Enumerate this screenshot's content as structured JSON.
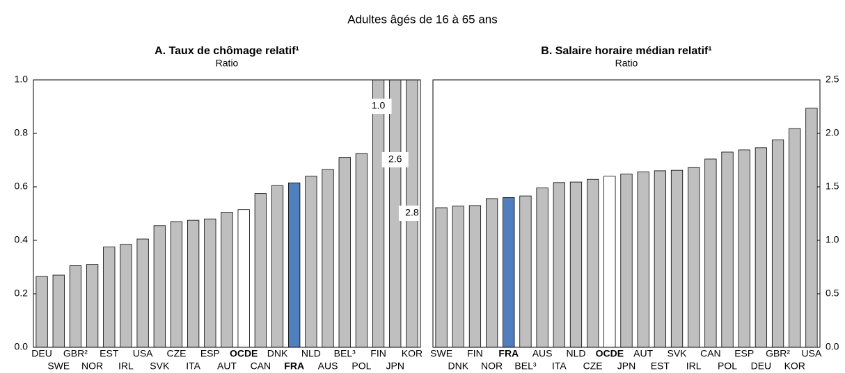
{
  "title": "Adultes âgés de 16 à 65 ans",
  "chart_data": [
    {
      "type": "bar",
      "title": "A. Taux de chômage relatif¹",
      "subtitle": "Ratio",
      "categories": [
        "DEU",
        "SWE",
        "GBR²",
        "NOR",
        "EST",
        "IRL",
        "USA",
        "SVK",
        "CZE",
        "ITA",
        "ESP",
        "AUT",
        "OCDE",
        "CAN",
        "DNK",
        "FRA",
        "NLD",
        "AUS",
        "BEL³",
        "POL",
        "FIN",
        "JPN",
        "KOR"
      ],
      "values": [
        0.265,
        0.27,
        0.305,
        0.31,
        0.375,
        0.385,
        0.405,
        0.455,
        0.47,
        0.475,
        0.48,
        0.505,
        0.515,
        0.575,
        0.605,
        0.615,
        0.64,
        0.665,
        0.71,
        0.725,
        1.0,
        2.6,
        2.8
      ],
      "value_labels": [
        null,
        null,
        null,
        null,
        null,
        null,
        null,
        null,
        null,
        null,
        null,
        null,
        null,
        null,
        null,
        null,
        null,
        null,
        null,
        null,
        "1.0",
        "2.6",
        "2.8"
      ],
      "color": "#bfbfbf",
      "colors": [
        "#bfbfbf",
        "#bfbfbf",
        "#bfbfbf",
        "#bfbfbf",
        "#bfbfbf",
        "#bfbfbf",
        "#bfbfbf",
        "#bfbfbf",
        "#bfbfbf",
        "#bfbfbf",
        "#bfbfbf",
        "#bfbfbf",
        "#ffffff",
        "#bfbfbf",
        "#bfbfbf",
        "#4f7fbf",
        "#bfbfbf",
        "#bfbfbf",
        "#bfbfbf",
        "#bfbfbf",
        "#bfbfbf",
        "#bfbfbf",
        "#bfbfbf"
      ],
      "ylim": [
        0,
        1.0
      ],
      "yticks": [
        {
          "value": 0,
          "label": "0.0"
        },
        0.2,
        0.4,
        0.6,
        0.8,
        {
          "value": 1.0,
          "label": "1.0"
        }
      ],
      "axis_side": "left"
    },
    {
      "type": "bar",
      "title": "B. Salaire horaire médian relatif¹",
      "subtitle": "Ratio",
      "categories": [
        "SWE",
        "DNK",
        "FIN",
        "NOR",
        "FRA",
        "BEL³",
        "AUS",
        "ITA",
        "NLD",
        "CZE",
        "OCDE",
        "JPN",
        "AUT",
        "EST",
        "SVK",
        "IRL",
        "CAN",
        "POL",
        "ESP",
        "DEU",
        "GBR²",
        "KOR",
        "USA"
      ],
      "values": [
        1.305,
        1.32,
        1.325,
        1.39,
        1.4,
        1.415,
        1.49,
        1.54,
        1.545,
        1.57,
        1.6,
        1.62,
        1.64,
        1.65,
        1.655,
        1.68,
        1.76,
        1.825,
        1.845,
        1.865,
        1.94,
        2.045,
        2.235
      ],
      "color": "#bfbfbf",
      "colors": [
        "#bfbfbf",
        "#bfbfbf",
        "#bfbfbf",
        "#bfbfbf",
        "#4f7fbf",
        "#bfbfbf",
        "#bfbfbf",
        "#bfbfbf",
        "#bfbfbf",
        "#bfbfbf",
        "#ffffff",
        "#bfbfbf",
        "#bfbfbf",
        "#bfbfbf",
        "#bfbfbf",
        "#bfbfbf",
        "#bfbfbf",
        "#bfbfbf",
        "#bfbfbf",
        "#bfbfbf",
        "#bfbfbf",
        "#bfbfbf",
        "#bfbfbf"
      ],
      "ylim": [
        0,
        2.5
      ],
      "yticks": [
        {
          "value": 0,
          "label": "0.0"
        },
        0.5,
        {
          "value": 1.0,
          "label": "1.0"
        },
        1.5,
        {
          "value": 2.0,
          "label": "2.0"
        },
        2.5
      ],
      "axis_side": "right"
    }
  ]
}
